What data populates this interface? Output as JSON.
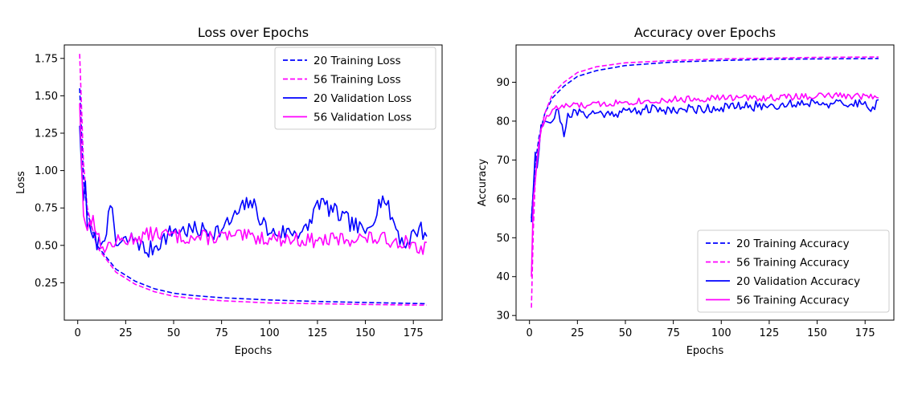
{
  "chart_data": [
    {
      "type": "line",
      "title": "Loss over Epochs",
      "xlabel": "Epochs",
      "ylabel": "Loss",
      "xlim": [
        -7,
        190
      ],
      "ylim": [
        0.0,
        1.84
      ],
      "xticks": [
        0,
        25,
        50,
        75,
        100,
        125,
        150,
        175
      ],
      "yticks": [
        0.25,
        0.5,
        0.75,
        1.0,
        1.25,
        1.5,
        1.75
      ],
      "ytick_decimals": 2,
      "grid": false,
      "legend": "top-right",
      "epochs": 182,
      "series": [
        {
          "name": "20 Training Loss",
          "color": "#0000ff",
          "dashed": true,
          "anchors": [
            [
              1,
              1.55
            ],
            [
              3,
              0.95
            ],
            [
              5,
              0.72
            ],
            [
              10,
              0.5
            ],
            [
              20,
              0.34
            ],
            [
              30,
              0.26
            ],
            [
              40,
              0.21
            ],
            [
              50,
              0.18
            ],
            [
              60,
              0.165
            ],
            [
              75,
              0.15
            ],
            [
              100,
              0.135
            ],
            [
              125,
              0.125
            ],
            [
              150,
              0.118
            ],
            [
              182,
              0.11
            ]
          ]
        },
        {
          "name": "56 Training Loss",
          "color": "#ff00ff",
          "dashed": true,
          "anchors": [
            [
              1,
              1.78
            ],
            [
              3,
              1.05
            ],
            [
              5,
              0.75
            ],
            [
              10,
              0.49
            ],
            [
              20,
              0.32
            ],
            [
              30,
              0.24
            ],
            [
              40,
              0.19
            ],
            [
              50,
              0.16
            ],
            [
              60,
              0.145
            ],
            [
              75,
              0.13
            ],
            [
              100,
              0.115
            ],
            [
              125,
              0.11
            ],
            [
              150,
              0.105
            ],
            [
              182,
              0.1
            ]
          ]
        },
        {
          "name": "20 Validation Loss",
          "color": "#0000ff",
          "dashed": false,
          "anchors": [
            [
              1,
              1.3
            ],
            [
              3,
              0.8
            ],
            [
              4,
              0.93
            ],
            [
              5,
              0.62
            ],
            [
              8,
              0.55
            ],
            [
              12,
              0.5
            ],
            [
              18,
              0.75
            ],
            [
              20,
              0.5
            ],
            [
              30,
              0.55
            ],
            [
              36,
              0.45
            ],
            [
              50,
              0.6
            ],
            [
              75,
              0.6
            ],
            [
              90,
              0.8
            ],
            [
              100,
              0.58
            ],
            [
              120,
              0.6
            ],
            [
              125,
              0.8
            ],
            [
              150,
              0.58
            ],
            [
              159,
              0.83
            ],
            [
              170,
              0.5
            ],
            [
              178,
              0.62
            ],
            [
              182,
              0.56
            ]
          ],
          "noise": 0.06,
          "seed": 7
        },
        {
          "name": "56 Validation Loss",
          "color": "#ff00ff",
          "dashed": false,
          "anchors": [
            [
              1,
              1.45
            ],
            [
              3,
              0.7
            ],
            [
              5,
              0.6
            ],
            [
              8,
              0.7
            ],
            [
              12,
              0.48
            ],
            [
              20,
              0.52
            ],
            [
              30,
              0.55
            ],
            [
              40,
              0.58
            ],
            [
              60,
              0.55
            ],
            [
              80,
              0.56
            ],
            [
              100,
              0.55
            ],
            [
              125,
              0.53
            ],
            [
              150,
              0.55
            ],
            [
              175,
              0.52
            ],
            [
              180,
              0.44
            ],
            [
              182,
              0.52
            ]
          ],
          "noise": 0.05,
          "seed": 13
        }
      ]
    },
    {
      "type": "line",
      "title": "Accuracy over Epochs",
      "xlabel": "Epochs",
      "ylabel": "Accuracy",
      "xlim": [
        -7,
        190
      ],
      "ylim": [
        28.8,
        99.6
      ],
      "xticks": [
        0,
        25,
        50,
        75,
        100,
        125,
        150,
        175
      ],
      "yticks": [
        30,
        40,
        50,
        60,
        70,
        80,
        90
      ],
      "ytick_decimals": 0,
      "grid": false,
      "legend": "bottom-right",
      "epochs": 182,
      "series": [
        {
          "name": "20 Training Accuracy",
          "color": "#0000ff",
          "dashed": true,
          "anchors": [
            [
              1,
              55
            ],
            [
              3,
              69
            ],
            [
              5,
              76
            ],
            [
              8,
              82
            ],
            [
              12,
              86
            ],
            [
              18,
              89
            ],
            [
              25,
              91.5
            ],
            [
              35,
              93
            ],
            [
              50,
              94.3
            ],
            [
              75,
              95.2
            ],
            [
              100,
              95.6
            ],
            [
              125,
              95.9
            ],
            [
              150,
              96
            ],
            [
              182,
              96.1
            ]
          ]
        },
        {
          "name": "56 Training Accuracy",
          "color": "#ff00ff",
          "dashed": true,
          "anchors": [
            [
              1,
              32
            ],
            [
              2,
              52
            ],
            [
              3,
              65
            ],
            [
              5,
              75
            ],
            [
              8,
              82
            ],
            [
              12,
              87
            ],
            [
              18,
              90
            ],
            [
              25,
              92.5
            ],
            [
              35,
              94
            ],
            [
              50,
              95
            ],
            [
              75,
              95.6
            ],
            [
              100,
              96
            ],
            [
              125,
              96.2
            ],
            [
              150,
              96.4
            ],
            [
              182,
              96.5
            ]
          ]
        },
        {
          "name": "20 Validation Accuracy",
          "color": "#0000ff",
          "dashed": false,
          "anchors": [
            [
              1,
              54
            ],
            [
              3,
              72
            ],
            [
              4,
              68
            ],
            [
              6,
              79
            ],
            [
              8,
              80
            ],
            [
              12,
              80
            ],
            [
              15,
              83
            ],
            [
              18,
              76
            ],
            [
              20,
              82
            ],
            [
              40,
              82
            ],
            [
              60,
              83
            ],
            [
              80,
              83
            ],
            [
              100,
              83.5
            ],
            [
              125,
              84
            ],
            [
              150,
              85
            ],
            [
              165,
              84
            ],
            [
              175,
              85
            ],
            [
              180,
              83
            ],
            [
              182,
              85.5
            ]
          ],
          "noise": 1.3,
          "seed": 21
        },
        {
          "name": "56 Training Accuracy",
          "color": "#ff00ff",
          "dashed": false,
          "anchors": [
            [
              1,
              40
            ],
            [
              2,
              60
            ],
            [
              4,
              70
            ],
            [
              6,
              78
            ],
            [
              8,
              80
            ],
            [
              12,
              83
            ],
            [
              20,
              84
            ],
            [
              30,
              84
            ],
            [
              50,
              85
            ],
            [
              75,
              85.5
            ],
            [
              100,
              86
            ],
            [
              125,
              86
            ],
            [
              150,
              86.5
            ],
            [
              180,
              86.5
            ],
            [
              182,
              86
            ]
          ],
          "noise": 0.9,
          "seed": 33
        }
      ]
    }
  ]
}
